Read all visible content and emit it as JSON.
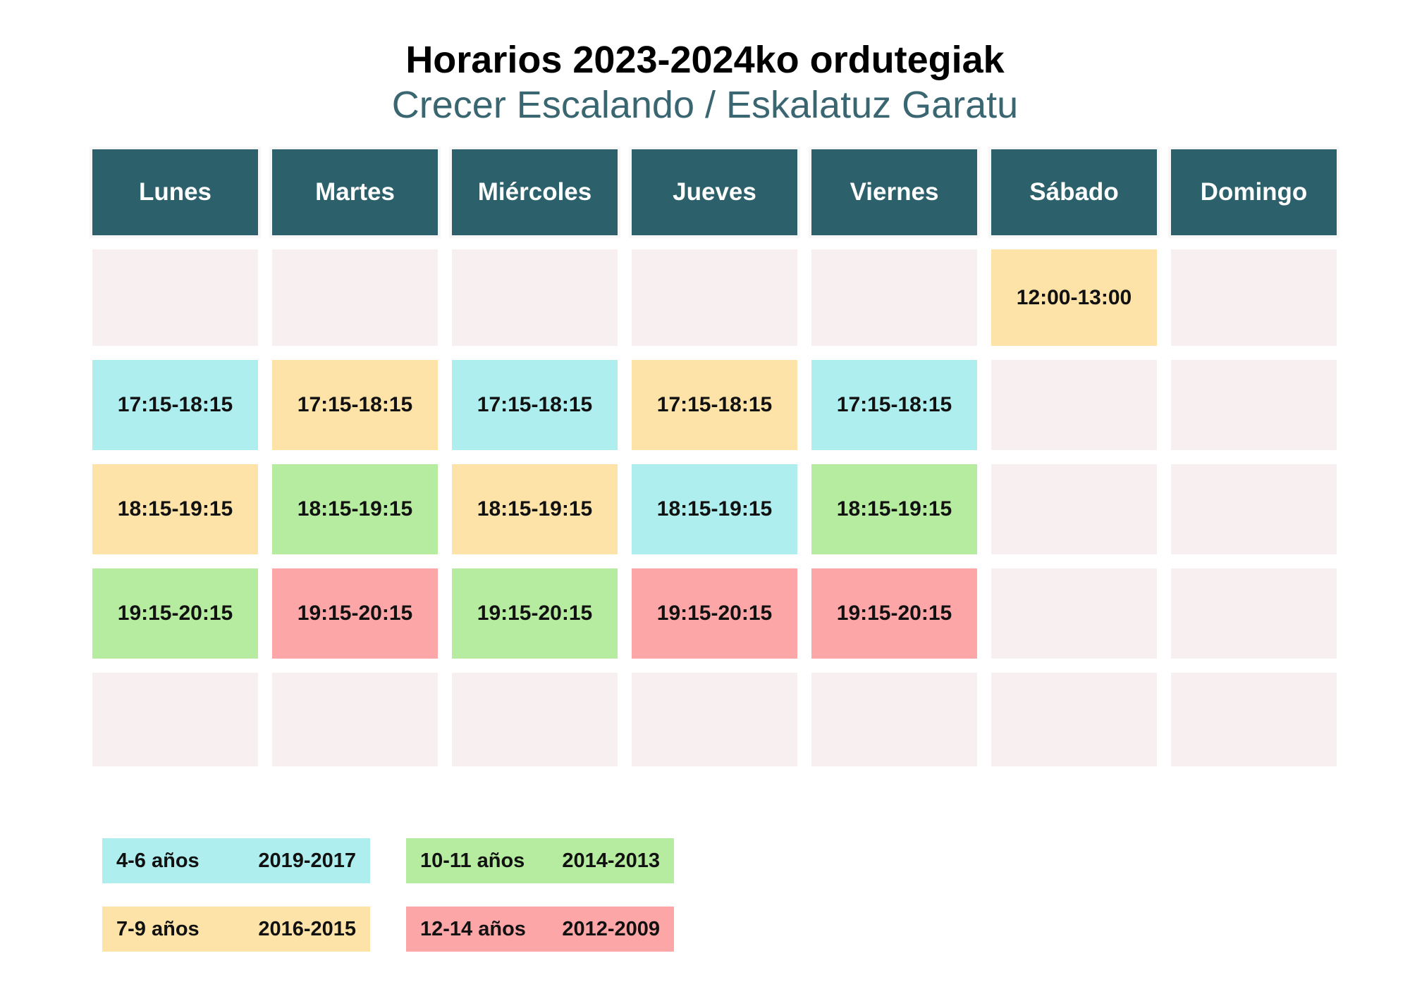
{
  "header": {
    "title": "Horarios 2023-2024ko ordutegiak",
    "subtitle": "Crecer Escalando / Eskalatuz Garatu"
  },
  "days": [
    "Lunes",
    "Martes",
    "Miércoles",
    "Jueves",
    "Viernes",
    "Sábado",
    "Domingo"
  ],
  "colors": {
    "4-6": "#aeeeee",
    "7-9": "#fde3a8",
    "10-11": "#b6ec9f",
    "12-14": "#fca6a8",
    "empty": "#f8f0f0",
    "header": "#2c616c"
  },
  "schedule": [
    [
      {
        "text": "",
        "group": "empty"
      },
      {
        "text": "",
        "group": "empty"
      },
      {
        "text": "",
        "group": "empty"
      },
      {
        "text": "",
        "group": "empty"
      },
      {
        "text": "",
        "group": "empty"
      },
      {
        "text": "12:00-13:00",
        "group": "7-9"
      },
      {
        "text": "",
        "group": "empty"
      }
    ],
    [
      {
        "text": "17:15-18:15",
        "group": "4-6"
      },
      {
        "text": "17:15-18:15",
        "group": "7-9"
      },
      {
        "text": "17:15-18:15",
        "group": "4-6"
      },
      {
        "text": "17:15-18:15",
        "group": "7-9"
      },
      {
        "text": "17:15-18:15",
        "group": "4-6"
      },
      {
        "text": "",
        "group": "empty"
      },
      {
        "text": "",
        "group": "empty"
      }
    ],
    [
      {
        "text": "18:15-19:15",
        "group": "7-9"
      },
      {
        "text": "18:15-19:15",
        "group": "10-11"
      },
      {
        "text": "18:15-19:15",
        "group": "7-9"
      },
      {
        "text": "18:15-19:15",
        "group": "4-6"
      },
      {
        "text": "18:15-19:15",
        "group": "10-11"
      },
      {
        "text": "",
        "group": "empty"
      },
      {
        "text": "",
        "group": "empty"
      }
    ],
    [
      {
        "text": "19:15-20:15",
        "group": "10-11"
      },
      {
        "text": "19:15-20:15",
        "group": "12-14"
      },
      {
        "text": "19:15-20:15",
        "group": "10-11"
      },
      {
        "text": "19:15-20:15",
        "group": "12-14"
      },
      {
        "text": "19:15-20:15",
        "group": "12-14"
      },
      {
        "text": "",
        "group": "empty"
      },
      {
        "text": "",
        "group": "empty"
      }
    ],
    [
      {
        "text": "",
        "group": "empty"
      },
      {
        "text": "",
        "group": "empty"
      },
      {
        "text": "",
        "group": "empty"
      },
      {
        "text": "",
        "group": "empty"
      },
      {
        "text": "",
        "group": "empty"
      },
      {
        "text": "",
        "group": "empty"
      },
      {
        "text": "",
        "group": "empty"
      }
    ]
  ],
  "legend": [
    {
      "age": "4-6 años",
      "years": "2019-2017",
      "group": "4-6"
    },
    {
      "age": "10-11 años",
      "years": "2014-2013",
      "group": "10-11"
    },
    {
      "age": "7-9 años",
      "years": "2016-2015",
      "group": "7-9"
    },
    {
      "age": "12-14 años",
      "years": "2012-2009",
      "group": "12-14"
    }
  ]
}
